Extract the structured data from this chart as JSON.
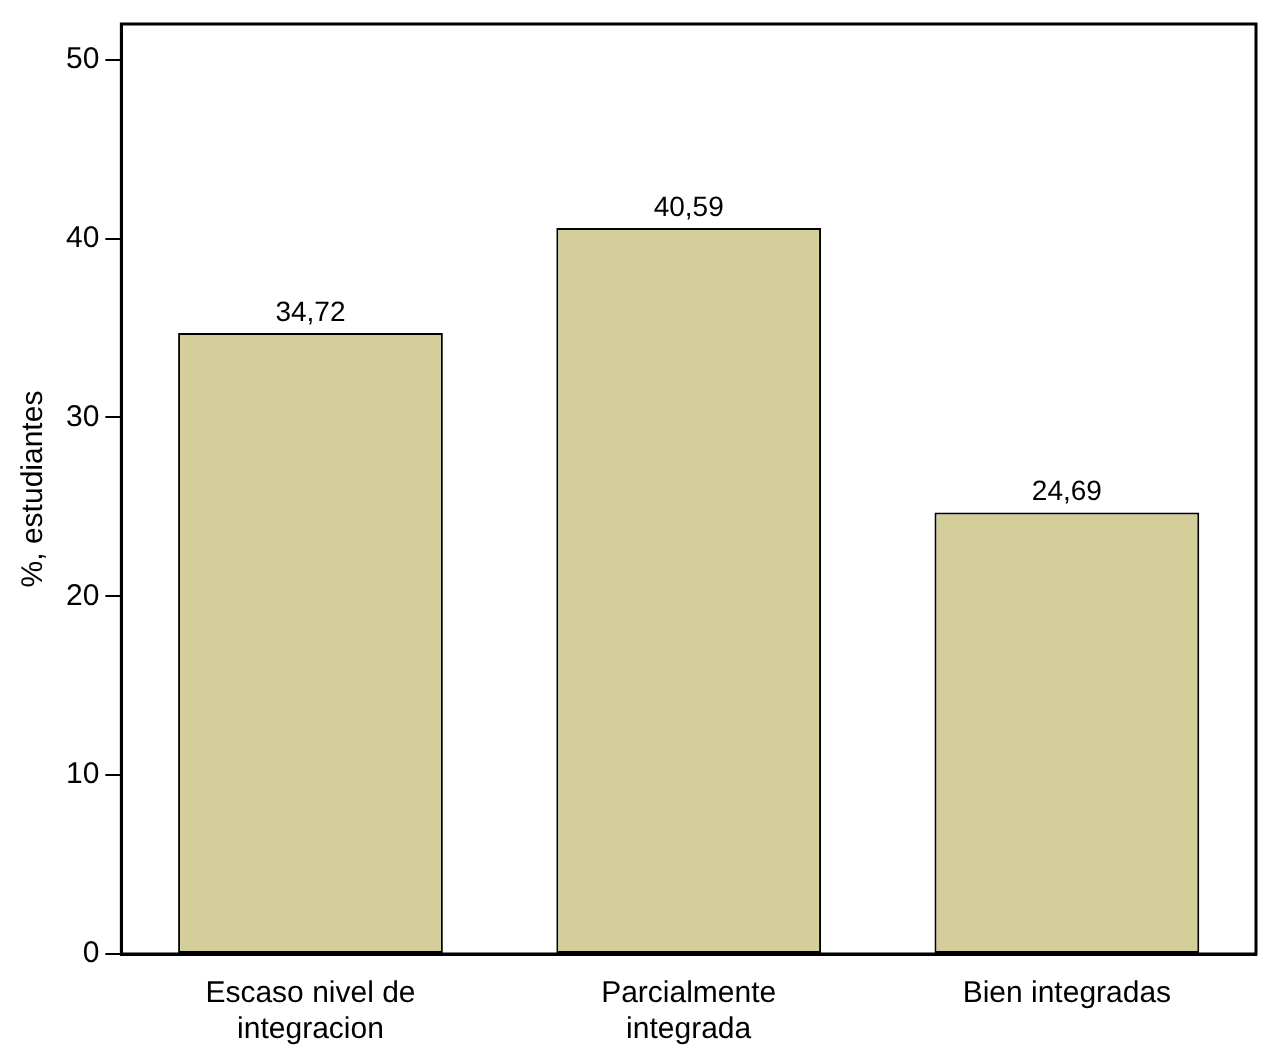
{
  "chart_data": {
    "type": "bar",
    "ylabel": "%, estudiantes",
    "categories": [
      "Escaso nivel de integracion",
      "Parcialmente integrada",
      "Bien integradas"
    ],
    "values": [
      34.72,
      40.59,
      24.69
    ],
    "color": "#d4cf9a",
    "value_labels": [
      "34,72",
      "40,59",
      "24,69"
    ],
    "ylim": [
      0,
      52
    ],
    "yticks": [
      0,
      10,
      20,
      30,
      40,
      50
    ],
    "grid": false,
    "legend": false
  }
}
